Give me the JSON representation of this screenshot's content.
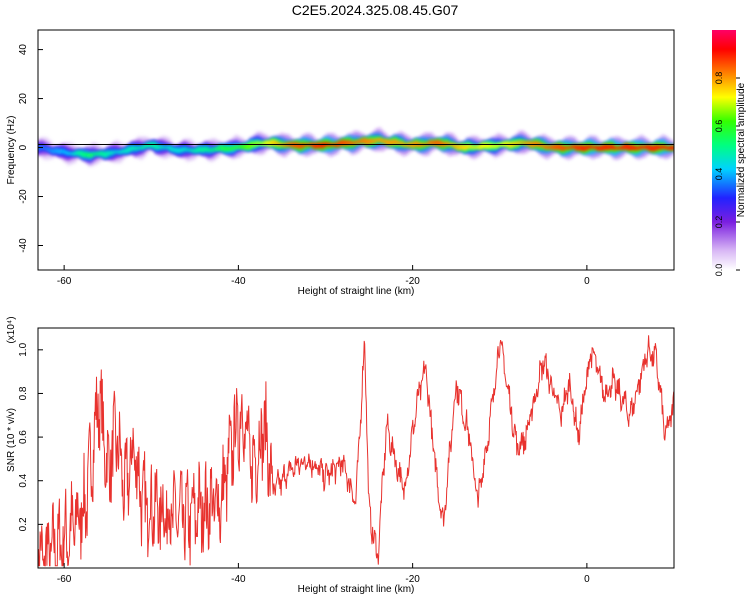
{
  "title": "C2E5.2024.325.08.45.G07",
  "colorbar": {
    "label": "Normalized spectral amplitude",
    "ticks": [
      "0.0",
      "0.2",
      "0.4",
      "0.6",
      "0.8"
    ]
  },
  "chart_data": [
    {
      "type": "heatmap",
      "title": "",
      "xlabel": "Height of straight line (km)",
      "ylabel": "Frequency (Hz)",
      "xlim": [
        -63,
        10
      ],
      "ylim": [
        -50,
        48
      ],
      "x_ticks": [
        "-60",
        "-40",
        "-20",
        "0"
      ],
      "y_ticks": [
        "40",
        "20",
        "0",
        "-20",
        "-40"
      ],
      "ridge": {
        "x": [
          -63,
          -60,
          -57,
          -54,
          -50,
          -47,
          -44,
          -40,
          -37,
          -34,
          -30,
          -27,
          -24,
          -20,
          -17,
          -14,
          -10,
          -7,
          -4,
          0,
          4,
          8,
          10
        ],
        "freq": [
          0,
          -2,
          -3,
          -2,
          1,
          -1,
          -1,
          0,
          2,
          1,
          1,
          2,
          3,
          1,
          2,
          0,
          1,
          2,
          0,
          0,
          0,
          0,
          0
        ],
        "amplitude": [
          0.35,
          0.4,
          0.55,
          0.45,
          0.5,
          0.45,
          0.5,
          0.6,
          0.7,
          0.85,
          0.9,
          0.85,
          0.8,
          0.8,
          0.85,
          0.75,
          0.7,
          0.8,
          0.85,
          0.9,
          0.9,
          0.9,
          0.9
        ]
      }
    },
    {
      "type": "line",
      "title": "",
      "xlabel": "Height of straight line (km)",
      "ylabel": "SNR (10 * v/v)",
      "y_multiplier": "(x10⁴)",
      "xlim": [
        -63,
        10
      ],
      "ylim": [
        0,
        1.1
      ],
      "x_ticks": [
        "-60",
        "-40",
        "-20",
        "0"
      ],
      "y_ticks": [
        "0.2",
        "0.4",
        "0.6",
        "0.8",
        "1.0"
      ],
      "series": [
        {
          "color": "#e8322e",
          "x": [
            -63,
            -61,
            -59,
            -57.5,
            -56,
            -55,
            -54,
            -53,
            -52,
            -51,
            -50,
            -48,
            -46,
            -44,
            -42,
            -40.5,
            -39.5,
            -38.5,
            -37,
            -36,
            -34,
            -32,
            -30,
            -28,
            -26.5,
            -25.5,
            -25,
            -24,
            -23,
            -21,
            -19.5,
            -18.5,
            -17.5,
            -16.5,
            -15,
            -13.5,
            -12.5,
            -11,
            -10,
            -9,
            -8,
            -7,
            -5,
            -3,
            -2,
            -1,
            0.5,
            2,
            3,
            5,
            7,
            8,
            9,
            10
          ],
          "y": [
            0.03,
            0.08,
            0.18,
            0.3,
            0.78,
            0.45,
            0.6,
            0.35,
            0.55,
            0.3,
            0.28,
            0.25,
            0.22,
            0.28,
            0.3,
            0.6,
            0.72,
            0.45,
            0.65,
            0.35,
            0.45,
            0.5,
            0.42,
            0.48,
            0.3,
            1.05,
            0.25,
            0.05,
            0.65,
            0.35,
            0.75,
            0.92,
            0.5,
            0.2,
            0.85,
            0.6,
            0.3,
            0.7,
            1.05,
            0.8,
            0.55,
            0.6,
            0.95,
            0.7,
            0.85,
            0.6,
            1.0,
            0.8,
            0.85,
            0.7,
            1.0,
            0.95,
            0.6,
            0.75
          ]
        }
      ]
    }
  ]
}
